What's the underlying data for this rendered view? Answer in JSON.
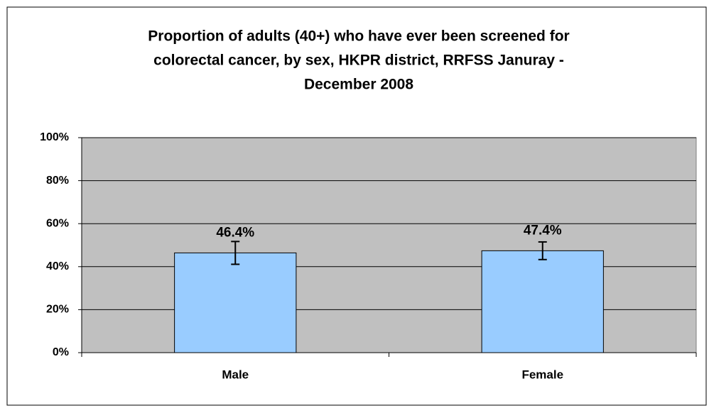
{
  "chart_data": {
    "type": "bar",
    "title": [
      "Proportion of adults (40+) who have ever been screened for",
      "colorectal cancer, by sex, HKPR district, RRFSS Januray -",
      "December 2008"
    ],
    "categories": [
      "Male",
      "Female"
    ],
    "values": [
      46.4,
      47.4
    ],
    "value_labels": [
      "46.4%",
      "47.4%"
    ],
    "errors": [
      5.3,
      4.1
    ],
    "color": "#99ccff",
    "plot_background": "#c0c0c0",
    "ylim": [
      0,
      100
    ],
    "yticks": [
      {
        "value": 0,
        "label": "0%"
      },
      {
        "value": 20,
        "label": "20%"
      },
      {
        "value": 40,
        "label": "40%"
      },
      {
        "value": 60,
        "label": "60%"
      },
      {
        "value": 80,
        "label": "80%"
      },
      {
        "value": 100,
        "label": "100%"
      }
    ],
    "grid": true
  }
}
